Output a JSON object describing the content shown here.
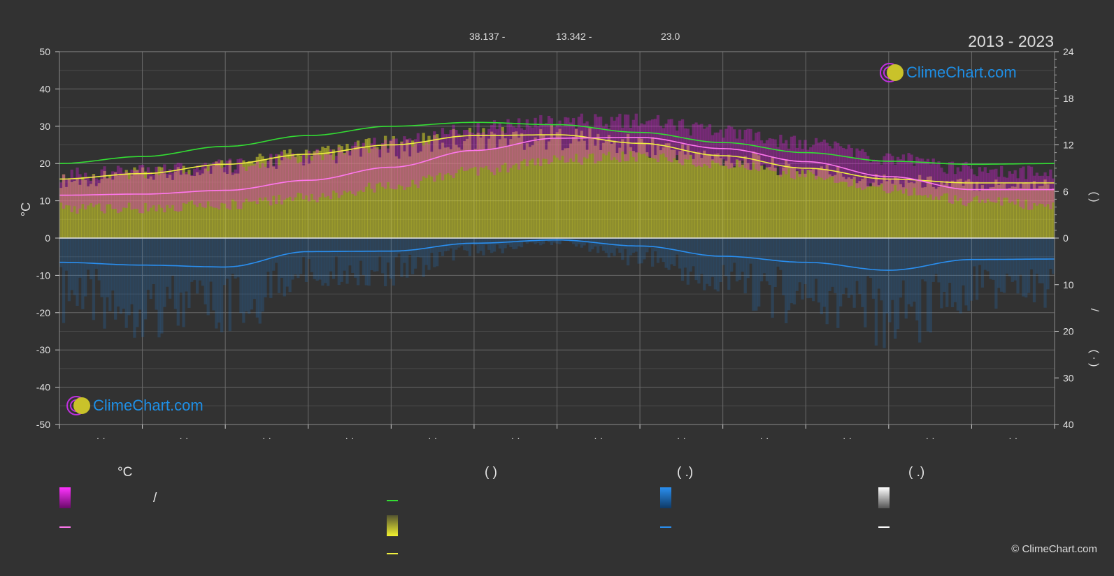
{
  "header": {
    "coord_lat": "38.137 -",
    "coord_lon": "13.342 -",
    "elevation": "23.0",
    "period": "2013 - 2023"
  },
  "watermark": {
    "text": "ClimeChart.com"
  },
  "copyright": "© ClimeChart.com",
  "axes": {
    "left_label": "°C",
    "right_top_label": "(       )",
    "right_slash": "/",
    "right_bottom_label": "(  ·  )"
  },
  "legend": {
    "col1_header": "°C",
    "col1_slash": "/",
    "col2_header": "(          )",
    "col3_header": "(    .)",
    "col4_header": "(    .)"
  },
  "colors": {
    "background": "#323232",
    "temp_band": "#e020e0",
    "temp_mean": "#ff77ee",
    "daylight": "#33dd33",
    "sunshine": "#d8d82a",
    "sunshine_mean": "#f0f040",
    "precip": "#1f7ad0",
    "precip_mean": "#2a8ff0",
    "snow": "#ffffff"
  },
  "chart_data": {
    "type": "area",
    "title": "",
    "xlabel": "",
    "ylabel": "°C",
    "ylim": [
      -50,
      50
    ],
    "y2lim_top": [
      0,
      24
    ],
    "y2lim_bottom": [
      0,
      40
    ],
    "grid": true,
    "left_ticks": [
      50,
      40,
      30,
      20,
      10,
      0,
      -10,
      -20,
      -30,
      -40,
      -50
    ],
    "right_top_ticks": [
      24,
      18,
      12,
      6,
      0
    ],
    "right_bottom_ticks": [
      10,
      20,
      30,
      40
    ],
    "x_tick_labels": [
      "· ·",
      "· ·",
      "· ·",
      "· ·",
      "· ·",
      "· ·",
      "· ·",
      "· ·",
      "· ·",
      "· ·",
      "· ·",
      "· ·"
    ],
    "x_months": [
      0,
      1,
      2,
      3,
      4,
      5,
      6,
      7,
      8,
      9,
      10,
      11,
      12
    ],
    "series": [
      {
        "key": "temp_max",
        "unit": "°C",
        "values": [
          16.5,
          17.5,
          19,
          21.5,
          25,
          29,
          31,
          31,
          28,
          25,
          21,
          18,
          17
        ]
      },
      {
        "key": "temp_min",
        "unit": "°C",
        "values": [
          8,
          8,
          9,
          11,
          14,
          18,
          21,
          22,
          20,
          17,
          13,
          10,
          8.5
        ]
      },
      {
        "key": "temp_mean",
        "unit": "°C",
        "values": [
          11.5,
          11.8,
          12.8,
          15.5,
          19,
          23.5,
          26.8,
          27,
          24,
          20.5,
          16.5,
          13,
          13
        ]
      },
      {
        "key": "daylight",
        "unit": "h",
        "values": [
          9.6,
          10.5,
          11.8,
          13.2,
          14.4,
          14.9,
          14.6,
          13.6,
          12.3,
          11.0,
          9.9,
          9.5,
          9.6
        ]
      },
      {
        "key": "sunshine_mean",
        "unit": "h",
        "values": [
          7.6,
          8.3,
          9.5,
          10.8,
          12.0,
          13.2,
          13.3,
          12.2,
          10.6,
          9.0,
          7.6,
          7.1,
          7.1
        ]
      },
      {
        "key": "precip_mean",
        "unit": "mm",
        "values": [
          5.2,
          5.8,
          6.2,
          2.9,
          2.8,
          1.1,
          0.4,
          1.7,
          3.9,
          5.2,
          6.9,
          4.6,
          4.5
        ]
      }
    ]
  }
}
